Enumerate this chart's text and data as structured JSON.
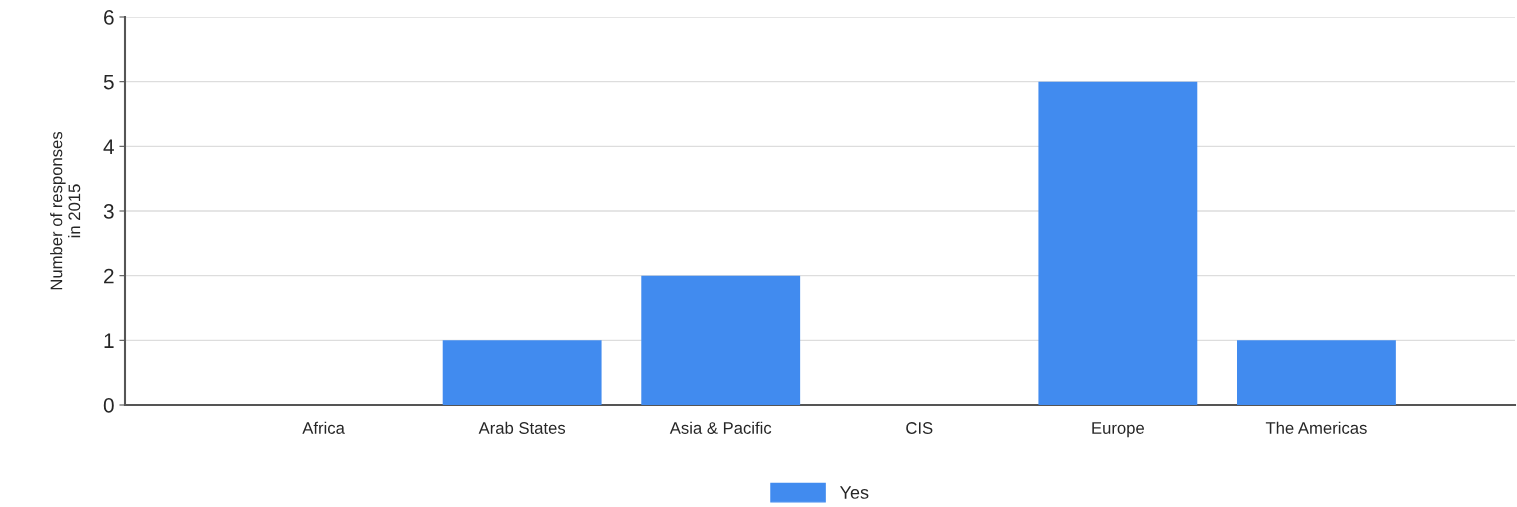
{
  "chart_data": {
    "type": "bar",
    "ylabel": "Number of responses\nin 2015",
    "categories": [
      "Africa",
      "Arab States",
      "Asia & Pacific",
      "CIS",
      "Europe",
      "The Americas"
    ],
    "series": [
      {
        "name": "Yes",
        "color": "#418bef",
        "values": [
          0,
          1,
          2,
          0,
          5,
          1
        ]
      }
    ],
    "ylim": [
      0,
      6
    ],
    "yticks": [
      0,
      1,
      2,
      3,
      4,
      5,
      6
    ],
    "grid": "y",
    "legend": "bottom"
  }
}
